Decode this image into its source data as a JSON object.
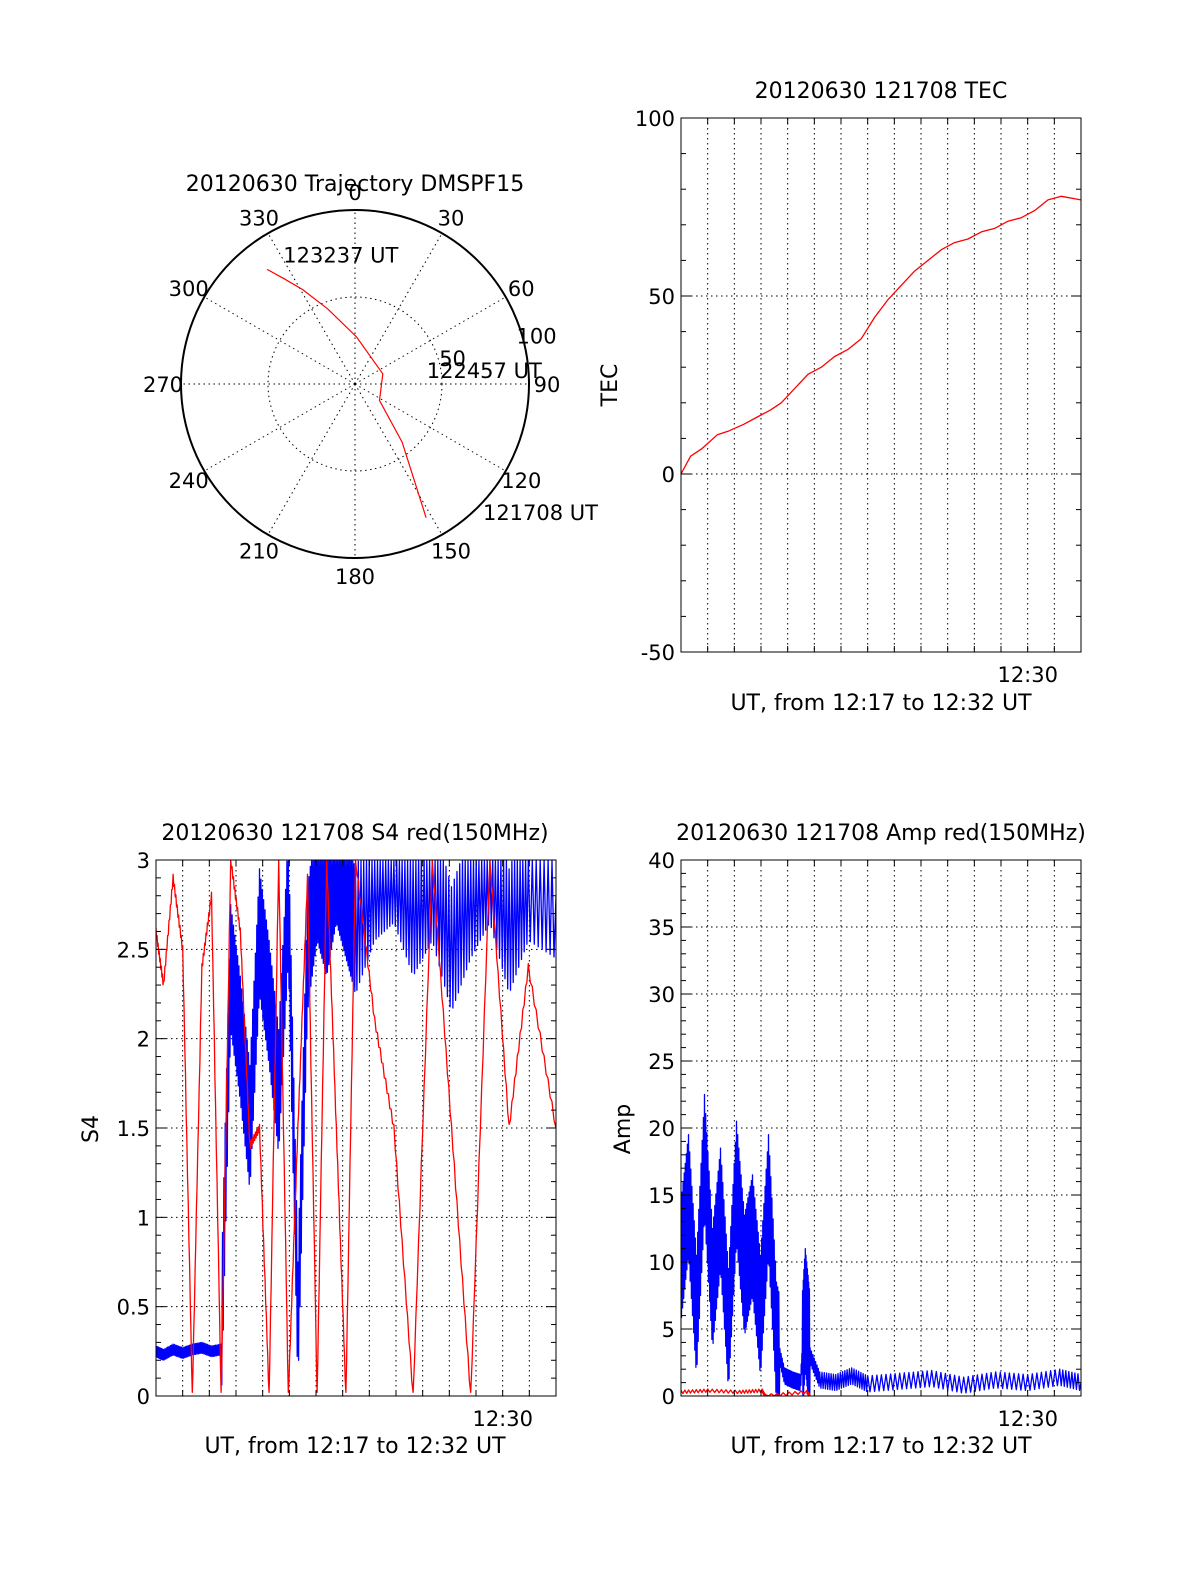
{
  "figure": {
    "colors": {
      "red": "#ff0000",
      "blue": "#0000ff",
      "axis": "#000000"
    }
  },
  "chart_data": [
    {
      "type": "polar",
      "id": "trajectory",
      "title": "20120630 Trajectory DMSPF15",
      "angle_ticks": [
        "0",
        "30",
        "60",
        "90",
        "120",
        "150",
        "180",
        "210",
        "240",
        "270",
        "300",
        "330"
      ],
      "angle_tick_values": [
        0,
        30,
        60,
        90,
        120,
        150,
        180,
        210,
        240,
        270,
        300,
        330
      ],
      "radial_ticks": [
        "50",
        "100"
      ],
      "radial_tick_values": [
        50,
        100
      ],
      "radial_max": 100,
      "grid": true,
      "series": [
        {
          "color": "#ff0000",
          "points": [
            [
              -37.5,
              83
            ],
            [
              -34,
              73
            ],
            [
              -29,
              62
            ],
            [
              -20,
              46
            ],
            [
              2,
              27
            ],
            [
              70,
              17
            ],
            [
              124,
              17
            ],
            [
              141,
              43
            ],
            [
              149,
              68
            ],
            [
              152,
              87
            ]
          ]
        }
      ],
      "annotations": [
        {
          "text": "123237 UT",
          "azimuth": -29,
          "radius": 85
        },
        {
          "text": "122457 UT",
          "azimuth": 79,
          "radius": 42
        },
        {
          "text": "121708 UT",
          "azimuth": 135,
          "radius": 104
        }
      ]
    },
    {
      "type": "line",
      "id": "tec",
      "title": "20120630 121708 TEC",
      "xlabel": "UT, from 12:17 to 12:32 UT",
      "ylabel": "TEC",
      "xlim": [
        12.2833,
        12.5333
      ],
      "ylim": [
        -50,
        100
      ],
      "yticks": [
        "-50",
        "0",
        "50",
        "100"
      ],
      "ytick_values": [
        -50,
        0,
        50,
        100
      ],
      "xticks": [
        "12:30"
      ],
      "xtick_values": [
        12.5
      ],
      "x_grid_step_minutes": 1,
      "grid": true,
      "series": [
        {
          "color": "#ff0000",
          "x": [
            12.2833,
            12.2893,
            12.296,
            12.306,
            12.3127,
            12.3227,
            12.331,
            12.3393,
            12.346,
            12.3543,
            12.3627,
            12.371,
            12.3793,
            12.3877,
            12.396,
            12.4043,
            12.4127,
            12.421,
            12.4293,
            12.4377,
            12.446,
            12.4543,
            12.4627,
            12.471,
            12.4793,
            12.4877,
            12.496,
            12.5043,
            12.5127,
            12.521,
            12.5333
          ],
          "y": [
            0,
            5,
            7,
            11,
            12,
            14,
            16,
            18,
            20,
            24,
            28,
            30,
            33,
            35,
            38,
            44,
            49,
            53,
            57,
            60,
            63,
            65,
            66,
            68,
            69,
            71,
            72,
            74,
            77,
            78,
            77
          ]
        }
      ]
    },
    {
      "type": "line",
      "id": "s4",
      "title": "20120630 121708 S4 red(150MHz)",
      "xlabel": "UT, from 12:17 to 12:32 UT",
      "ylabel": "S4",
      "xlim": [
        12.2833,
        12.5333
      ],
      "ylim": [
        0,
        3
      ],
      "yticks": [
        "0",
        "0.5",
        "1",
        "1.5",
        "2",
        "2.5",
        "3"
      ],
      "ytick_values": [
        0,
        0.5,
        1,
        1.5,
        2,
        2.5,
        3
      ],
      "xticks": [
        "12:30"
      ],
      "xtick_values": [
        12.5
      ],
      "x_grid_step_minutes": 1,
      "grid": true,
      "series": [
        {
          "color": "#0000ff",
          "x": [
            12.2833,
            12.288,
            12.294,
            12.3,
            12.306,
            12.312,
            12.318,
            12.324,
            12.33,
            12.336,
            12.342,
            12.348,
            12.354,
            12.36,
            12.366,
            12.372,
            12.378,
            12.384,
            12.39,
            12.396,
            12.402,
            12.408,
            12.42,
            12.432,
            12.444,
            12.456,
            12.468,
            12.48,
            12.492,
            12.504,
            12.516,
            12.5333
          ],
          "y": [
            0.25,
            0.23,
            0.26,
            0.24,
            0.26,
            0.27,
            0.25,
            0.26,
            2.4,
            2.0,
            1.5,
            2.6,
            2.2,
            1.7,
            2.8,
            0.4,
            2.5,
            2.9,
            2.7,
            3.0,
            2.8,
            2.6,
            2.9,
            3.0,
            2.7,
            2.9,
            2.5,
            2.8,
            3.0,
            2.6,
            2.9,
            2.8
          ]
        },
        {
          "color": "#ff0000",
          "x": [
            12.2833,
            12.288,
            12.294,
            12.3,
            12.306,
            12.312,
            12.318,
            12.324,
            12.33,
            12.336,
            12.342,
            12.348,
            12.354,
            12.36,
            12.366,
            12.372,
            12.378,
            12.384,
            12.39,
            12.396,
            12.402,
            12.408,
            12.42,
            12.432,
            12.444,
            12.456,
            12.468,
            12.48,
            12.492,
            12.504,
            12.516,
            12.5333
          ],
          "y": [
            2.6,
            2.3,
            2.9,
            2.5,
            0.0,
            2.4,
            2.8,
            0.0,
            3.0,
            2.6,
            1.4,
            1.5,
            0.0,
            3.0,
            0.0,
            1.5,
            2.9,
            0.0,
            3.0,
            1.5,
            0.0,
            3.0,
            2.1,
            1.5,
            0.0,
            3.0,
            1.5,
            0.0,
            3.0,
            1.5,
            2.4,
            1.5
          ]
        }
      ]
    },
    {
      "type": "line",
      "id": "amp",
      "title": "20120630 121708 Amp red(150MHz)",
      "xlabel": "UT, from 12:17 to 12:32 UT",
      "ylabel": "Amp",
      "xlim": [
        12.2833,
        12.5333
      ],
      "ylim": [
        0,
        40
      ],
      "yticks": [
        "0",
        "5",
        "10",
        "15",
        "20",
        "25",
        "30",
        "35",
        "40"
      ],
      "ytick_values": [
        0,
        5,
        10,
        15,
        20,
        25,
        30,
        35,
        40
      ],
      "xticks": [
        "12:30"
      ],
      "xtick_values": [
        12.5
      ],
      "x_grid_step_minutes": 1,
      "grid": true,
      "series": [
        {
          "color": "#0000ff",
          "x": [
            12.2833,
            12.288,
            12.293,
            12.298,
            12.303,
            12.308,
            12.313,
            12.318,
            12.323,
            12.328,
            12.333,
            12.338,
            12.343,
            12.348,
            12.353,
            12.358,
            12.361,
            12.364,
            12.37,
            12.38,
            12.39,
            12.4,
            12.42,
            12.44,
            12.46,
            12.48,
            12.5,
            12.52,
            12.5333
          ],
          "y": [
            10,
            15,
            6,
            18,
            8,
            14,
            5,
            16,
            9,
            12,
            6,
            15,
            4,
            1.5,
            1.2,
            1.0,
            6.5,
            3,
            1.2,
            1.0,
            1.5,
            0.9,
            1.1,
            1.3,
            0.8,
            1.2,
            1.0,
            1.4,
            1.0
          ]
        },
        {
          "color": "#ff0000",
          "x": [
            12.2833,
            12.3,
            12.32,
            12.334,
            12.336,
            12.362,
            12.364
          ],
          "y": [
            0.3,
            0.4,
            0.3,
            0.4,
            0.0,
            0.3,
            0.0
          ]
        }
      ]
    }
  ]
}
